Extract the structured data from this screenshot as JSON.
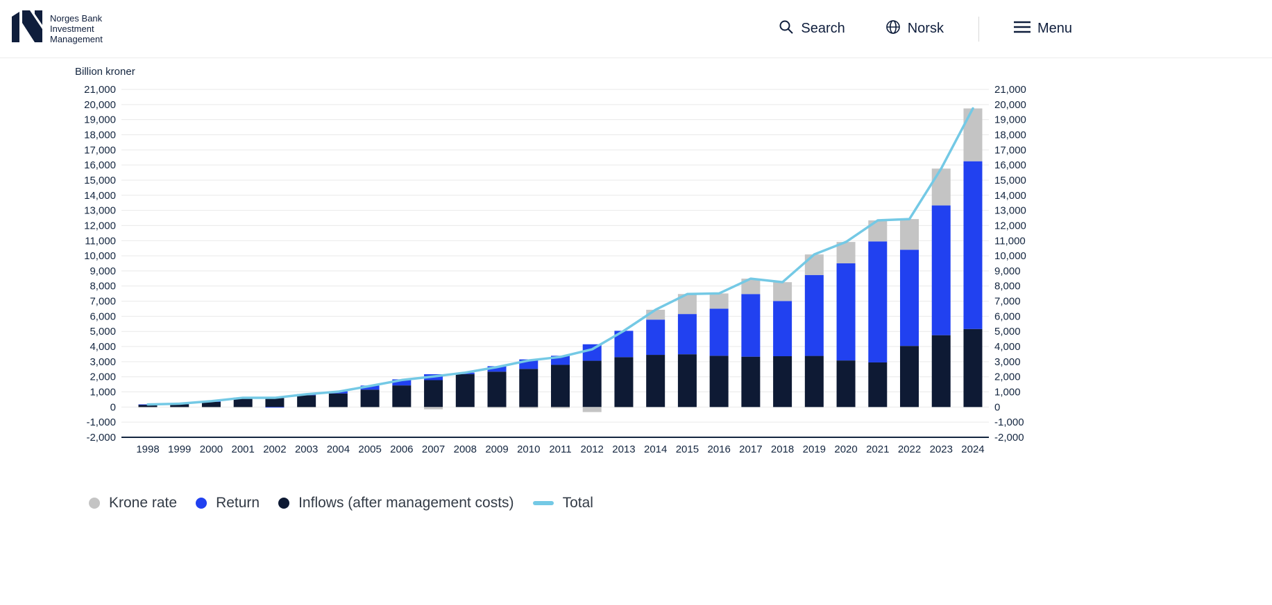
{
  "header": {
    "brand_line1": "Norges Bank",
    "brand_line2": "Investment",
    "brand_line3": "Management",
    "search_label": "Search",
    "language_label": "Norsk",
    "menu_label": "Menu"
  },
  "chart_data": {
    "type": "bar",
    "subtype": "stacked-bars-with-total-line",
    "title": "",
    "unit_label": "Billion kroner",
    "xlabel": "",
    "ylabel": "Billion kroner",
    "ylim": [
      -2000,
      21000
    ],
    "ytick_step": 1000,
    "grid": true,
    "legend_position": "bottom-left",
    "categories": [
      "1998",
      "1999",
      "2000",
      "2001",
      "2002",
      "2003",
      "2004",
      "2005",
      "2006",
      "2007",
      "2008",
      "2009",
      "2010",
      "2011",
      "2012",
      "2013",
      "2014",
      "2015",
      "2016",
      "2017",
      "2018",
      "2019",
      "2020",
      "2021",
      "2022",
      "2023",
      "2024"
    ],
    "series": [
      {
        "name": "Inflows (after management costs)",
        "color": "#0e1a34",
        "values": [
          170,
          190,
          340,
          590,
          620,
          780,
          900,
          1150,
          1430,
          1780,
          2180,
          2340,
          2520,
          2790,
          3060,
          3300,
          3450,
          3490,
          3390,
          3330,
          3360,
          3380,
          3080,
          2950,
          4040,
          4750,
          5160
        ]
      },
      {
        "name": "Return",
        "color": "#2141f0",
        "values": [
          5,
          35,
          50,
          35,
          -20,
          80,
          140,
          270,
          400,
          390,
          95,
          360,
          630,
          600,
          1090,
          1740,
          2330,
          2660,
          3110,
          4140,
          3650,
          5350,
          6420,
          8000,
          6360,
          8580,
          11090
        ]
      },
      {
        "name": "Krone rate",
        "color": "#c4c4c4",
        "values": [
          -3,
          -3,
          -4,
          -11,
          9,
          -15,
          -24,
          -30,
          -46,
          -151,
          0,
          -60,
          -73,
          -78,
          -334,
          -2,
          651,
          1321,
          1010,
          1018,
          1246,
          1358,
          1414,
          1390,
          2029,
          2435,
          3492
        ]
      }
    ],
    "line": {
      "name": "Total",
      "color": "#74c9e5",
      "values": [
        172,
        222,
        386,
        614,
        609,
        845,
        1016,
        1390,
        1784,
        2019,
        2275,
        2640,
        3077,
        3312,
        3816,
        5038,
        6431,
        7471,
        7510,
        8488,
        8256,
        10088,
        10914,
        12340,
        12429,
        15765,
        19742
      ]
    }
  },
  "legend": [
    {
      "label": "Krone rate",
      "swatch": "dot",
      "color": "#c4c4c4"
    },
    {
      "label": "Return",
      "swatch": "dot",
      "color": "#2141f0"
    },
    {
      "label": "Inflows (after management costs)",
      "swatch": "dot",
      "color": "#0e1a34"
    },
    {
      "label": "Total",
      "swatch": "line",
      "color": "#74c9e5"
    }
  ],
  "colors": {
    "accent_navy": "#0f1e3c",
    "grid": "#e9e9e9",
    "axis_line": "#13253f",
    "tick_text": "#13253f",
    "legend_text": "#333b46"
  }
}
